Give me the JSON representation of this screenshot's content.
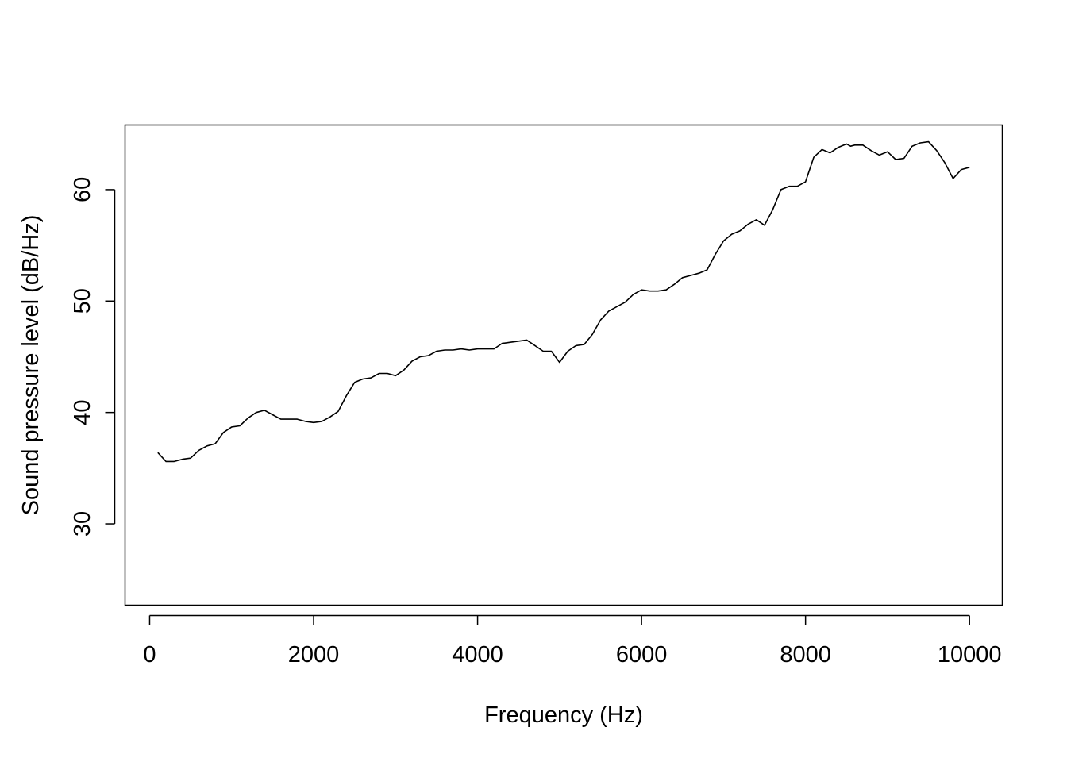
{
  "chart_data": {
    "type": "line",
    "title": "",
    "xlabel": "Frequency (Hz)",
    "ylabel": "Sound pressure level (dB/Hz)",
    "xlim": [
      -300,
      10400
    ],
    "ylim": [
      22.7,
      65.8
    ],
    "x_ticks": [
      0,
      2000,
      4000,
      6000,
      8000,
      10000
    ],
    "x_tick_labels": [
      "0",
      "2000",
      "4000",
      "6000",
      "8000",
      "10000"
    ],
    "y_ticks": [
      30,
      40,
      50,
      60
    ],
    "y_tick_labels": [
      "30",
      "40",
      "50",
      "60"
    ],
    "grid": false,
    "legend": "none",
    "series": [
      {
        "color": "#000000",
        "x": [
          100,
          200,
          300,
          400,
          500,
          600,
          700,
          800,
          900,
          1000,
          1100,
          1200,
          1300,
          1400,
          1500,
          1600,
          1700,
          1800,
          1900,
          2000,
          2100,
          2200,
          2300,
          2400,
          2500,
          2600,
          2700,
          2800,
          2900,
          3000,
          3100,
          3200,
          3300,
          3400,
          3500,
          3600,
          3700,
          3800,
          3900,
          4000,
          4100,
          4200,
          4300,
          4400,
          4500,
          4600,
          4700,
          4800,
          4900,
          5000,
          5100,
          5200,
          5300,
          5400,
          5500,
          5600,
          5700,
          5800,
          5900,
          6000,
          6100,
          6200,
          6300,
          6400,
          6500,
          6600,
          6700,
          6800,
          6900,
          7000,
          7100,
          7200,
          7300,
          7400,
          7500,
          7600,
          7700,
          7800,
          7900,
          8000,
          8100,
          8200,
          8300,
          8400,
          8500,
          8550,
          8600,
          8650,
          8700,
          8800,
          8900,
          9000,
          9100,
          9200,
          9300,
          9400,
          9500,
          9600,
          9700,
          9800,
          9900,
          10000
        ],
        "values": [
          36.4,
          35.6,
          35.6,
          35.8,
          35.9,
          36.6,
          37.0,
          37.2,
          38.2,
          38.7,
          38.8,
          39.5,
          40.0,
          40.2,
          39.8,
          39.4,
          39.4,
          39.4,
          39.2,
          39.1,
          39.2,
          39.6,
          40.1,
          41.5,
          42.7,
          43.0,
          43.1,
          43.5,
          43.5,
          43.3,
          43.8,
          44.6,
          45.0,
          45.1,
          45.5,
          45.6,
          45.6,
          45.7,
          45.6,
          45.7,
          45.7,
          45.7,
          46.2,
          46.3,
          46.4,
          46.5,
          46.0,
          45.5,
          45.5,
          44.5,
          45.5,
          46.0,
          46.1,
          47.0,
          48.3,
          49.1,
          49.5,
          49.9,
          50.6,
          51.0,
          50.9,
          50.9,
          51.0,
          51.5,
          52.1,
          52.3,
          52.5,
          52.8,
          54.2,
          55.4,
          56.0,
          56.3,
          56.9,
          57.3,
          56.8,
          58.2,
          60.0,
          60.3,
          60.3,
          60.7,
          62.9,
          63.6,
          63.3,
          63.8,
          64.1,
          63.9,
          64.0,
          64.0,
          64.0,
          63.5,
          63.1,
          63.4,
          62.7,
          62.8,
          63.9,
          64.2,
          64.3,
          63.5,
          62.4,
          61.0,
          61.8,
          62.0
        ],
        "values_note": ""
      }
    ]
  }
}
